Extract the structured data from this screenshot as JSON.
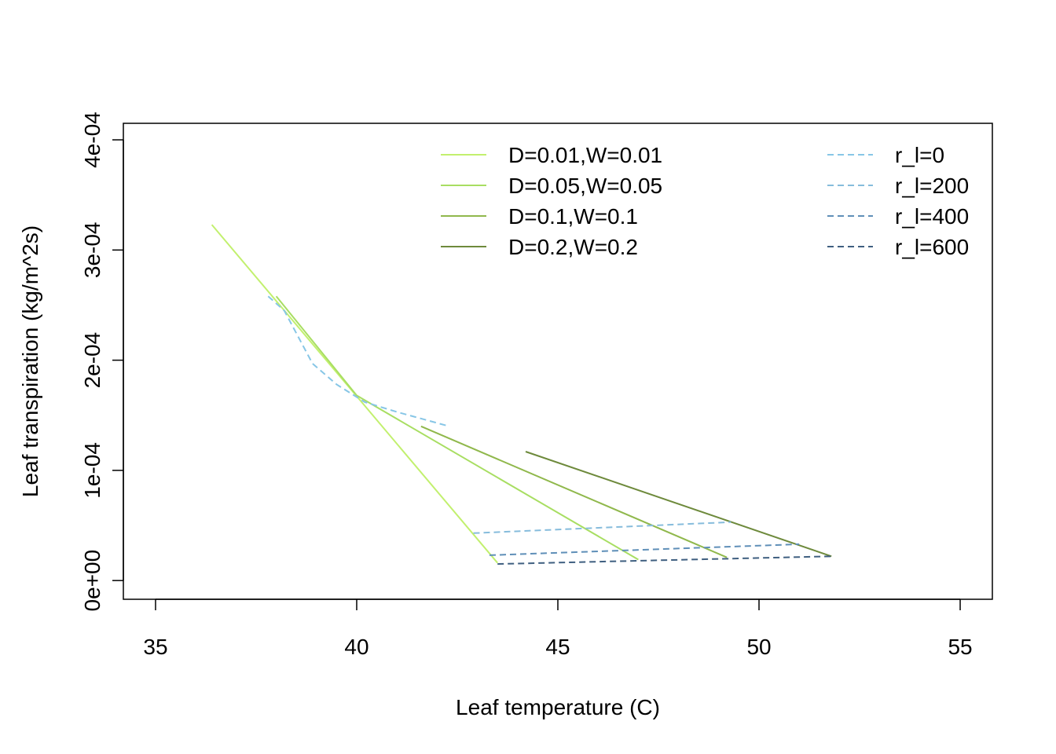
{
  "chart_data": {
    "type": "line",
    "xlabel": "Leaf temperature (C)",
    "ylabel": "Leaf transpiration (kg/m^2s)",
    "xlim": [
      34.2,
      55.8
    ],
    "ylim": [
      -1.7e-05,
      0.000415
    ],
    "xticks": [
      35,
      40,
      45,
      50,
      55
    ],
    "xtick_labels": [
      "35",
      "40",
      "45",
      "50",
      "55"
    ],
    "yticks": [
      0,
      0.0001,
      0.0002,
      0.0003,
      0.0004
    ],
    "ytick_labels": [
      "0e+00",
      "1e-04",
      "2e-04",
      "3e-04",
      "4e-04"
    ],
    "grid": false,
    "legend_placement": "top",
    "series": [
      {
        "name": "D=0.01,W=0.01",
        "color": "#c2f06e",
        "style": "solid",
        "group": "size",
        "x": [
          36.4,
          43.5
        ],
        "y": [
          0.000323,
          1.6e-05
        ]
      },
      {
        "name": "D=0.05,W=0.05",
        "color": "#a8de62",
        "style": "solid",
        "group": "size",
        "x": [
          38.0,
          40.0,
          47.0
        ],
        "y": [
          0.000258,
          0.000168,
          1.9e-05
        ]
      },
      {
        "name": "D=0.1,W=0.1",
        "color": "#90b84c",
        "style": "solid",
        "group": "size",
        "x": [
          41.6,
          49.2
        ],
        "y": [
          0.00014,
          2.1e-05
        ]
      },
      {
        "name": "D=0.2,W=0.2",
        "color": "#6e8a3c",
        "style": "solid",
        "group": "size",
        "x": [
          44.2,
          51.8
        ],
        "y": [
          0.000117,
          2.2e-05
        ]
      },
      {
        "name": "r_l=0",
        "color": "#87c6e6",
        "style": "dashed",
        "group": "resistance",
        "x": [
          37.8,
          38.2,
          38.9,
          39.5,
          40.2,
          41.0,
          42.3
        ],
        "y": [
          0.000258,
          0.000245,
          0.000197,
          0.000178,
          0.000162,
          0.000153,
          0.00014
        ]
      },
      {
        "name": "r_l=200",
        "color": "#86bcdc",
        "style": "dashed",
        "group": "resistance",
        "x": [
          42.9,
          49.3
        ],
        "y": [
          4.3e-05,
          5.3e-05
        ]
      },
      {
        "name": "r_l=400",
        "color": "#5f8fb8",
        "style": "dashed",
        "group": "resistance",
        "x": [
          43.3,
          51.0
        ],
        "y": [
          2.3e-05,
          3.3e-05
        ]
      },
      {
        "name": "r_l=600",
        "color": "#3f5f80",
        "style": "dashed",
        "group": "resistance",
        "x": [
          43.5,
          51.8
        ],
        "y": [
          1.5e-05,
          2.2e-05
        ]
      }
    ]
  }
}
